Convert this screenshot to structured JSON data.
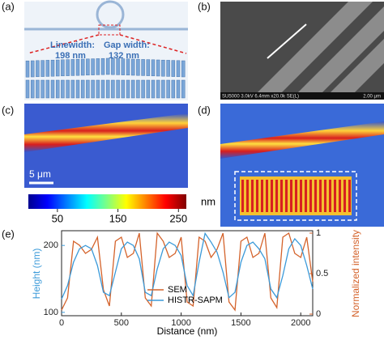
{
  "panels": {
    "a": {
      "label": "(a)",
      "linewidth_label": "Linewidth:",
      "linewidth": "198 nm",
      "gap_label": "Gap width:",
      "gap": "132 nm"
    },
    "b": {
      "label": "(b)",
      "info": "SU5000 3.0kV 6.4mm x20.0k SE(L)",
      "scale": "2.00 μm"
    },
    "c": {
      "label": "(c)",
      "scale": "5 μm"
    },
    "d": {
      "label": "(d)"
    },
    "colorbar": {
      "lim": [
        2,
        263
      ],
      "ticks": [
        50,
        150,
        250
      ],
      "unit": "nm"
    },
    "e": {
      "label": "(e)"
    }
  },
  "chart_data": {
    "type": "line",
    "xlabel": "Distance (nm)",
    "ylabel": "Height (nm)",
    "y2label": "Normalized intensity",
    "x": [
      0,
      50,
      100,
      150,
      200,
      250,
      300,
      350,
      400,
      450,
      500,
      550,
      600,
      650,
      700,
      750,
      800,
      850,
      900,
      950,
      1000,
      1050,
      1100,
      1150,
      1200,
      1250,
      1300,
      1350,
      1400,
      1450,
      1500,
      1550,
      1600,
      1650,
      1700,
      1750,
      1800,
      1850,
      1900,
      1950,
      2000,
      2050,
      2100
    ],
    "series": [
      {
        "name": "SEM",
        "color": "#d4622a",
        "axis": "y2",
        "values": [
          0.05,
          0.2,
          0.9,
          0.85,
          0.75,
          0.8,
          0.95,
          0.3,
          0.1,
          0.9,
          0.95,
          0.7,
          0.75,
          1.0,
          0.2,
          0.1,
          1.0,
          0.9,
          0.7,
          0.75,
          0.95,
          0.15,
          0.1,
          0.95,
          0.9,
          0.7,
          0.8,
          1.0,
          0.15,
          0.05,
          0.9,
          0.95,
          0.7,
          0.75,
          1.0,
          0.2,
          0.08,
          0.95,
          1.0,
          0.75,
          0.7,
          0.95,
          0.4
        ]
      },
      {
        "name": "HISTR-SAPM",
        "color": "#3b9ad9",
        "values": [
          120,
          140,
          175,
          195,
          200,
          195,
          170,
          130,
          125,
          160,
          195,
          205,
          200,
          180,
          130,
          125,
          165,
          195,
          205,
          200,
          185,
          140,
          125,
          175,
          218,
          205,
          190,
          160,
          122,
          130,
          175,
          200,
          205,
          195,
          180,
          135,
          122,
          155,
          195,
          210,
          200,
          170,
          135
        ]
      }
    ],
    "xlim": [
      0,
      2100
    ],
    "xticks": [
      0,
      500,
      1000,
      1500,
      2000
    ],
    "ylim": [
      95,
      222
    ],
    "yticks": [
      100,
      200
    ],
    "y2lim": [
      -0.02,
      1.03
    ],
    "y2ticks": [
      0,
      0.5,
      1
    ],
    "legend": "lower-center"
  }
}
